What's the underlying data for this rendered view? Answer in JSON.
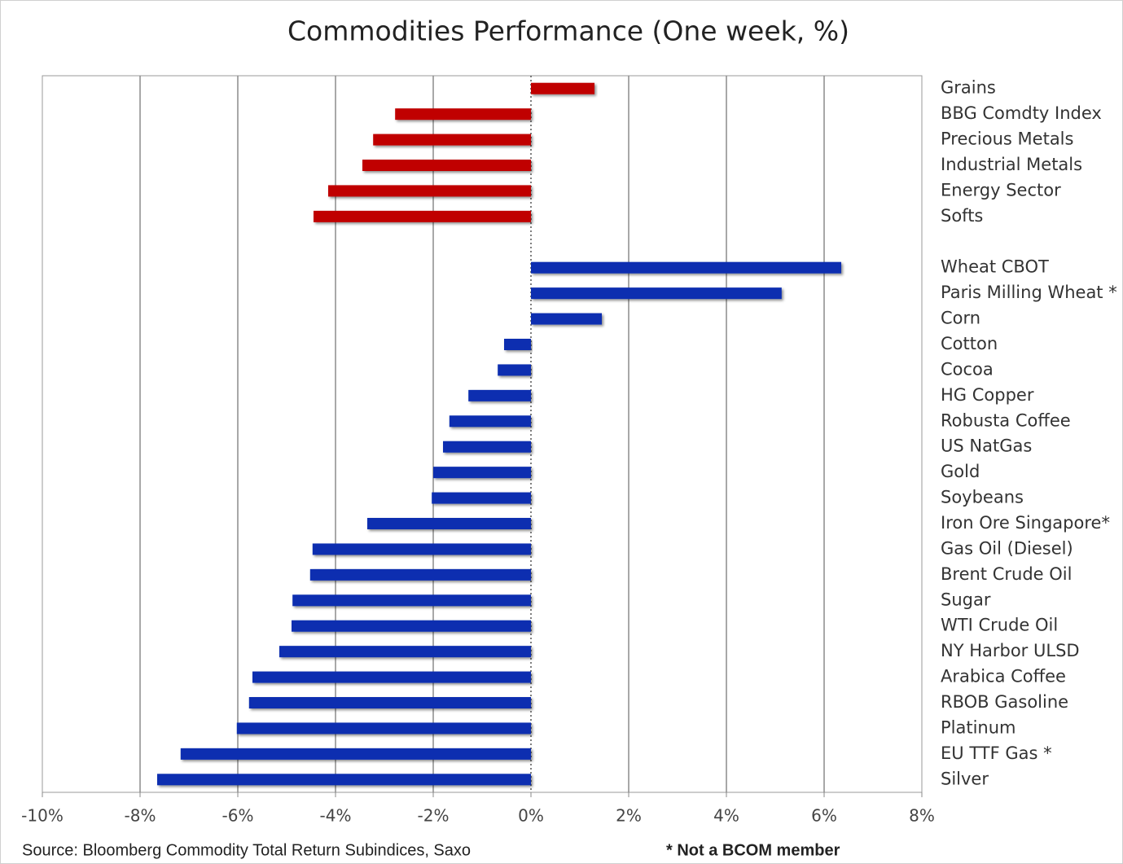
{
  "chart_data": {
    "type": "bar",
    "orientation": "horizontal",
    "title": "Commodities Performance (One week, %)",
    "source": "Source: Bloomberg Commodity Total Return Subindices, Saxo",
    "note": "* Not a BCOM member",
    "categories": [
      "Grains",
      "BBG Comdty Index",
      "Precious Metals",
      "Industrial Metals",
      "Energy Sector",
      "Softs",
      null,
      "Wheat CBOT",
      "Paris Milling Wheat *",
      "Corn",
      "Cotton",
      "Cocoa",
      "HG Copper",
      "Robusta Coffee",
      "US NatGas",
      "Gold",
      "Soybeans",
      "Iron Ore Singapore*",
      "Gas Oil (Diesel)",
      "Brent Crude Oil",
      "Sugar",
      "WTI Crude Oil",
      "NY Harbor ULSD",
      "Arabica Coffee",
      "RBOB Gasoline",
      "Platinum",
      "EU TTF Gas *",
      "Silver"
    ],
    "series": [
      {
        "color": "#c00000",
        "values": [
          1.3,
          -2.78,
          -3.23,
          -3.45,
          -4.15,
          -4.45,
          null,
          null,
          null,
          null,
          null,
          null,
          null,
          null,
          null,
          null,
          null,
          null,
          null,
          null,
          null,
          null,
          null,
          null,
          null,
          null,
          null,
          null
        ]
      },
      {
        "color": "#0a2fb0",
        "values": [
          null,
          null,
          null,
          null,
          null,
          null,
          null,
          6.35,
          5.13,
          1.45,
          -0.55,
          -0.68,
          -1.28,
          -1.67,
          -1.8,
          -2.0,
          -2.03,
          -3.35,
          -4.47,
          -4.52,
          -4.88,
          -4.9,
          -5.15,
          -5.7,
          -5.77,
          -6.02,
          -7.17,
          -7.65
        ]
      }
    ],
    "xlim": [
      -10,
      8
    ],
    "xticks": [
      {
        "value": -10,
        "label": "-10%"
      },
      {
        "value": -8,
        "label": "-8%"
      },
      {
        "value": -6,
        "label": "-6%"
      },
      {
        "value": -4,
        "label": "-4%"
      },
      {
        "value": -2,
        "label": "-2%"
      },
      {
        "value": 0,
        "label": "0%"
      },
      {
        "value": 2,
        "label": "2%"
      },
      {
        "value": 4,
        "label": "4%"
      },
      {
        "value": 6,
        "label": "6%"
      },
      {
        "value": 8,
        "label": "8%"
      }
    ],
    "grid": true
  }
}
